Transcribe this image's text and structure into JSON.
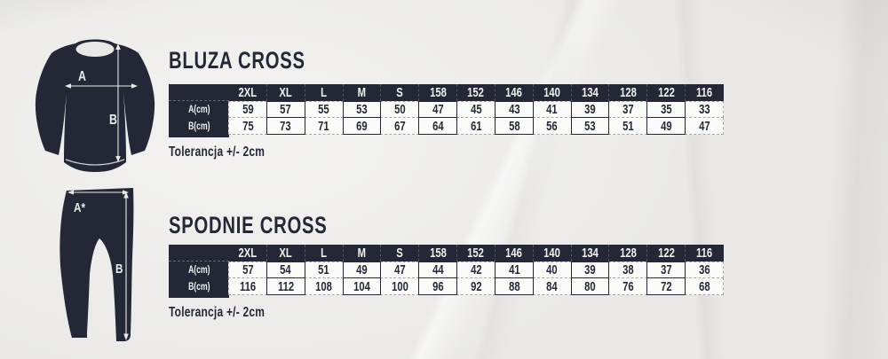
{
  "colors": {
    "navy": "#242836",
    "paper": "#e9e8e6",
    "cell_background": "#fbfbf9",
    "dashed_border": "#a6a6a2",
    "arrow": "#ecebe9"
  },
  "sections": [
    {
      "title": "BLUZA CROSS",
      "tolerance": "Tolerancja +/- 2cm",
      "diagram": {
        "garment": "long-sleeve-shirt",
        "width_label": "A",
        "length_label": "B"
      },
      "table": {
        "sizes": [
          "2XL",
          "XL",
          "L",
          "M",
          "S",
          "158",
          "152",
          "146",
          "140",
          "134",
          "128",
          "122",
          "116"
        ],
        "rows": [
          {
            "label": "A(cm)",
            "values": [
              "59",
              "57",
              "55",
              "53",
              "50",
              "47",
              "45",
              "43",
              "41",
              "39",
              "37",
              "35",
              "33"
            ]
          },
          {
            "label": "B(cm)",
            "values": [
              "75",
              "73",
              "71",
              "69",
              "67",
              "64",
              "61",
              "58",
              "56",
              "53",
              "51",
              "49",
              "47"
            ]
          }
        ]
      }
    },
    {
      "title": "SPODNIE CROSS",
      "tolerance": "Tolerancja +/- 2cm",
      "diagram": {
        "garment": "jogger-pants",
        "width_label": "A*",
        "length_label": "B"
      },
      "table": {
        "sizes": [
          "2XL",
          "XL",
          "L",
          "M",
          "S",
          "158",
          "152",
          "146",
          "140",
          "134",
          "128",
          "122",
          "116"
        ],
        "rows": [
          {
            "label": "A(cm)",
            "values": [
              "57",
              "54",
              "51",
              "49",
              "47",
              "44",
              "42",
              "41",
              "40",
              "39",
              "38",
              "37",
              "36"
            ]
          },
          {
            "label": "B(cm)",
            "values": [
              "116",
              "112",
              "108",
              "104",
              "100",
              "96",
              "92",
              "88",
              "84",
              "80",
              "76",
              "72",
              "68"
            ]
          }
        ]
      }
    }
  ]
}
